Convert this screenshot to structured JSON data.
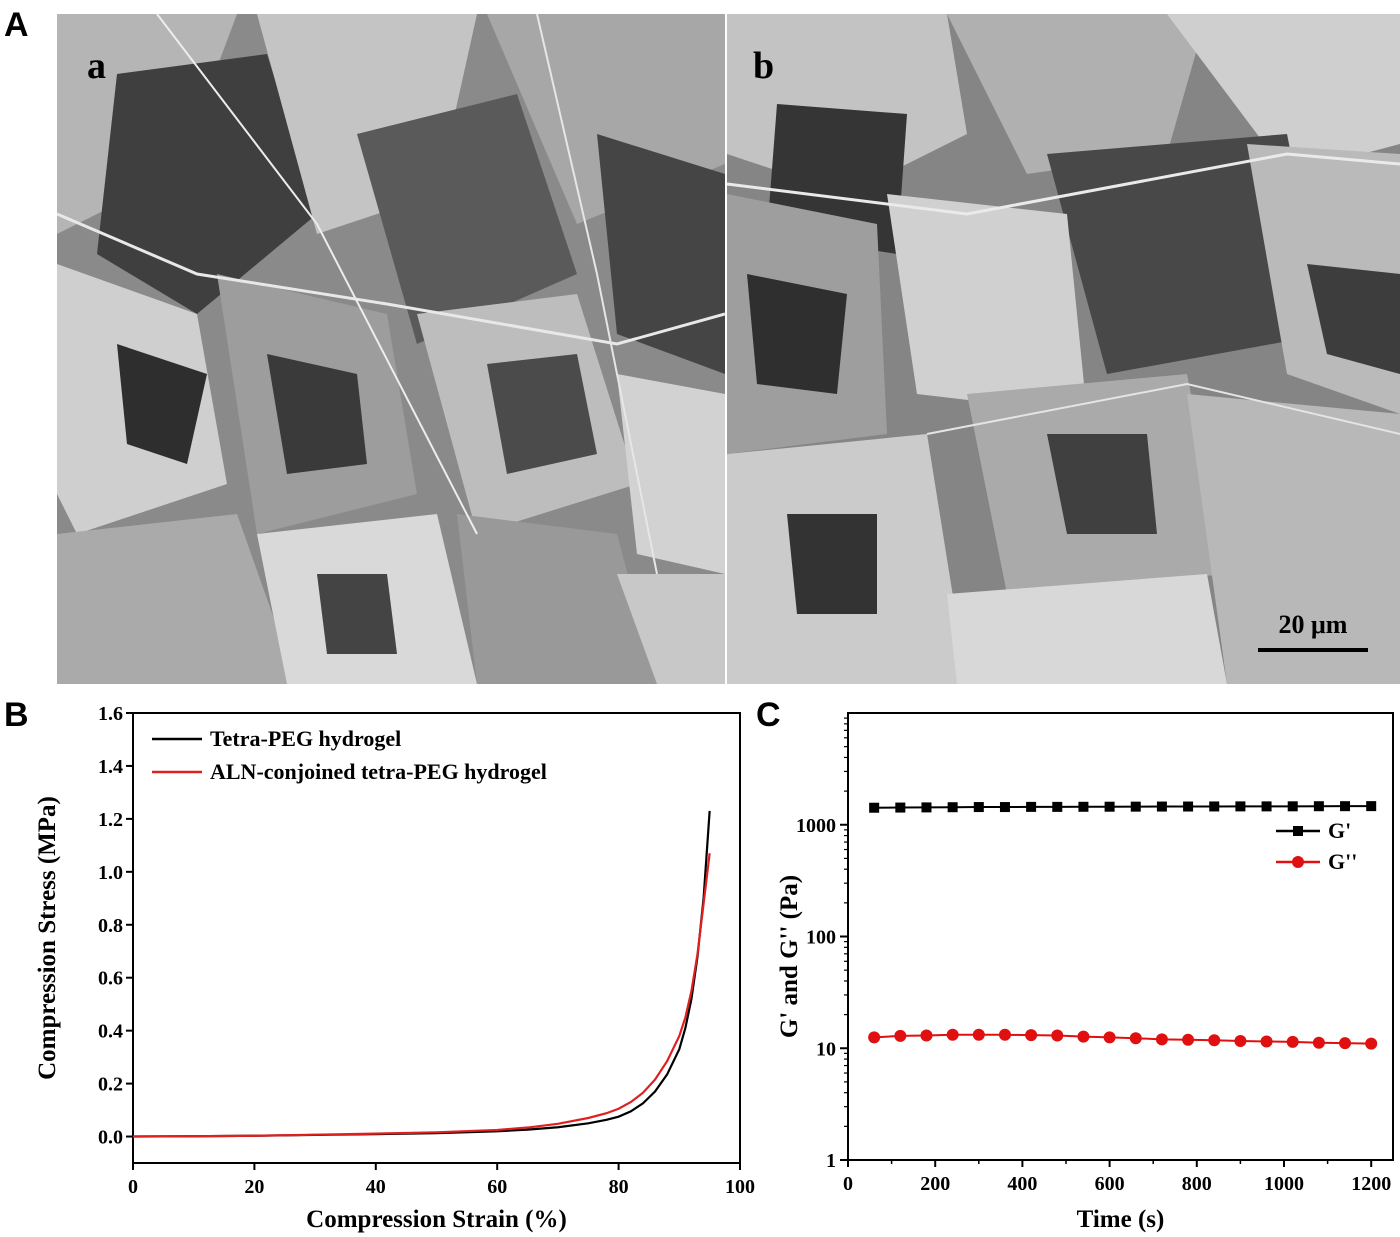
{
  "panels": {
    "A": {
      "letter": "A",
      "sub_a": "a",
      "sub_b": "b",
      "scale_bar": "20 μm",
      "description": ""
    },
    "B": {
      "letter": "B"
    },
    "C": {
      "letter": "C"
    }
  },
  "chart_data": [
    {
      "type": "line",
      "panel": "B",
      "title": "",
      "xlabel": "Compression Strain (%)",
      "ylabel": "Compression Stress (MPa)",
      "xlim": [
        0,
        100
      ],
      "ylim": [
        -0.1,
        1.6
      ],
      "xticks": [
        0,
        20,
        40,
        60,
        80,
        100
      ],
      "yticks": [
        0.0,
        0.2,
        0.4,
        0.6,
        0.8,
        1.0,
        1.2,
        1.4,
        1.6
      ],
      "ytick_labels": [
        "0.0",
        "0.2",
        "0.4",
        "0.6",
        "0.8",
        "1.0",
        "1.2",
        "1.4",
        "1.6"
      ],
      "legend_position": "top-left",
      "grid": false,
      "series": [
        {
          "name": "Tetra-PEG hydrogel",
          "color": "#000000",
          "x": [
            0,
            10,
            20,
            30,
            40,
            50,
            60,
            65,
            70,
            75,
            78,
            80,
            82,
            84,
            86,
            88,
            90,
            91,
            92,
            93,
            94,
            95
          ],
          "y": [
            0,
            0.001,
            0.003,
            0.006,
            0.009,
            0.013,
            0.02,
            0.026,
            0.035,
            0.05,
            0.063,
            0.075,
            0.095,
            0.125,
            0.17,
            0.235,
            0.33,
            0.41,
            0.52,
            0.68,
            0.9,
            1.23
          ]
        },
        {
          "name": "ALN-conjoined tetra-PEG hydrogel",
          "color": "#e02020",
          "x": [
            0,
            10,
            20,
            30,
            40,
            50,
            60,
            65,
            70,
            75,
            78,
            80,
            82,
            84,
            86,
            88,
            90,
            91,
            92,
            93,
            94,
            95
          ],
          "y": [
            0,
            0.001,
            0.003,
            0.007,
            0.011,
            0.016,
            0.025,
            0.034,
            0.048,
            0.07,
            0.088,
            0.105,
            0.13,
            0.165,
            0.215,
            0.285,
            0.38,
            0.45,
            0.55,
            0.69,
            0.88,
            1.07
          ]
        }
      ]
    },
    {
      "type": "scatter",
      "panel": "C",
      "title": "",
      "xlabel": "Time (s)",
      "ylabel": "G' and G'' (Pa)",
      "xlim": [
        0,
        1250
      ],
      "ylim": [
        1,
        10000
      ],
      "yscale": "log",
      "xticks": [
        0,
        200,
        400,
        600,
        800,
        1000,
        1200
      ],
      "yticks": [
        1,
        10,
        100,
        1000
      ],
      "ytick_labels": [
        "1",
        "10",
        "100",
        "1000"
      ],
      "legend_position": "right",
      "grid": false,
      "series": [
        {
          "name": "G'",
          "color": "#000000",
          "marker": "square",
          "x": [
            60,
            120,
            180,
            240,
            300,
            360,
            420,
            480,
            540,
            600,
            660,
            720,
            780,
            840,
            900,
            960,
            1020,
            1080,
            1140,
            1200
          ],
          "y": [
            1420,
            1425,
            1430,
            1435,
            1440,
            1440,
            1445,
            1445,
            1448,
            1450,
            1452,
            1455,
            1456,
            1458,
            1460,
            1460,
            1462,
            1465,
            1466,
            1468
          ]
        },
        {
          "name": "G''",
          "color": "#e01010",
          "marker": "circle",
          "x": [
            60,
            120,
            180,
            240,
            300,
            360,
            420,
            480,
            540,
            600,
            660,
            720,
            780,
            840,
            900,
            960,
            1020,
            1080,
            1140,
            1200
          ],
          "y": [
            12.5,
            12.9,
            13.0,
            13.2,
            13.2,
            13.2,
            13.1,
            13.0,
            12.7,
            12.5,
            12.3,
            12.0,
            11.9,
            11.8,
            11.6,
            11.5,
            11.4,
            11.2,
            11.1,
            11.0
          ]
        }
      ]
    }
  ]
}
